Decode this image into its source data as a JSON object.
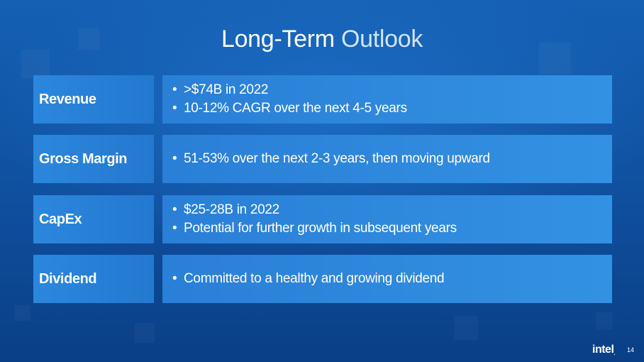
{
  "slide": {
    "title_main": "Long-Term",
    "title_accent": "Outlook",
    "rows": [
      {
        "label": "Revenue",
        "bullets": [
          ">$74B in 2022",
          "10-12% CAGR over the next 4-5 years"
        ]
      },
      {
        "label": "Gross Margin",
        "bullets": [
          "51-53% over the next 2-3 years, then moving upward"
        ]
      },
      {
        "label": "CapEx",
        "bullets": [
          "$25-28B in 2022",
          "Potential for further growth in subsequent years"
        ]
      },
      {
        "label": "Dividend",
        "bullets": [
          "Committed to a healthy and growing dividend"
        ]
      }
    ],
    "bullet_glyph": "•",
    "logo_text": "intel",
    "logo_mark": ".",
    "page_number": "14"
  },
  "colors": {
    "background": "#1560b4",
    "label_cell": "#2b87dd",
    "content_cell": "#2a7fd6",
    "title_accent": "#cfe4fb"
  }
}
